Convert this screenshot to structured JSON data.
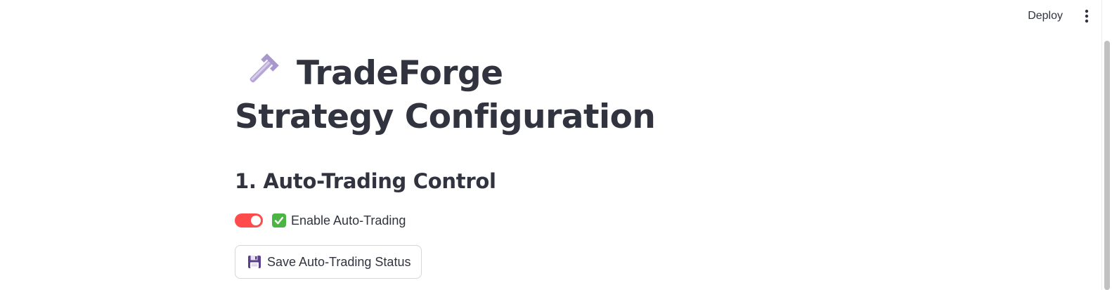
{
  "header": {
    "deploy_label": "Deploy",
    "menu_icon": "vertical-ellipsis-icon"
  },
  "main": {
    "title": "TradeForge Strategy Configuration",
    "title_icon": "wrench-icon",
    "section_1_title": "1. Auto-Trading Control",
    "toggle": {
      "label": "Enable Auto-Trading",
      "checked": true,
      "icon": "check-mark-button-icon",
      "color": "#ff4b4b"
    },
    "save_button": {
      "label": "Save Auto-Trading Status",
      "icon": "floppy-disk-icon"
    }
  }
}
